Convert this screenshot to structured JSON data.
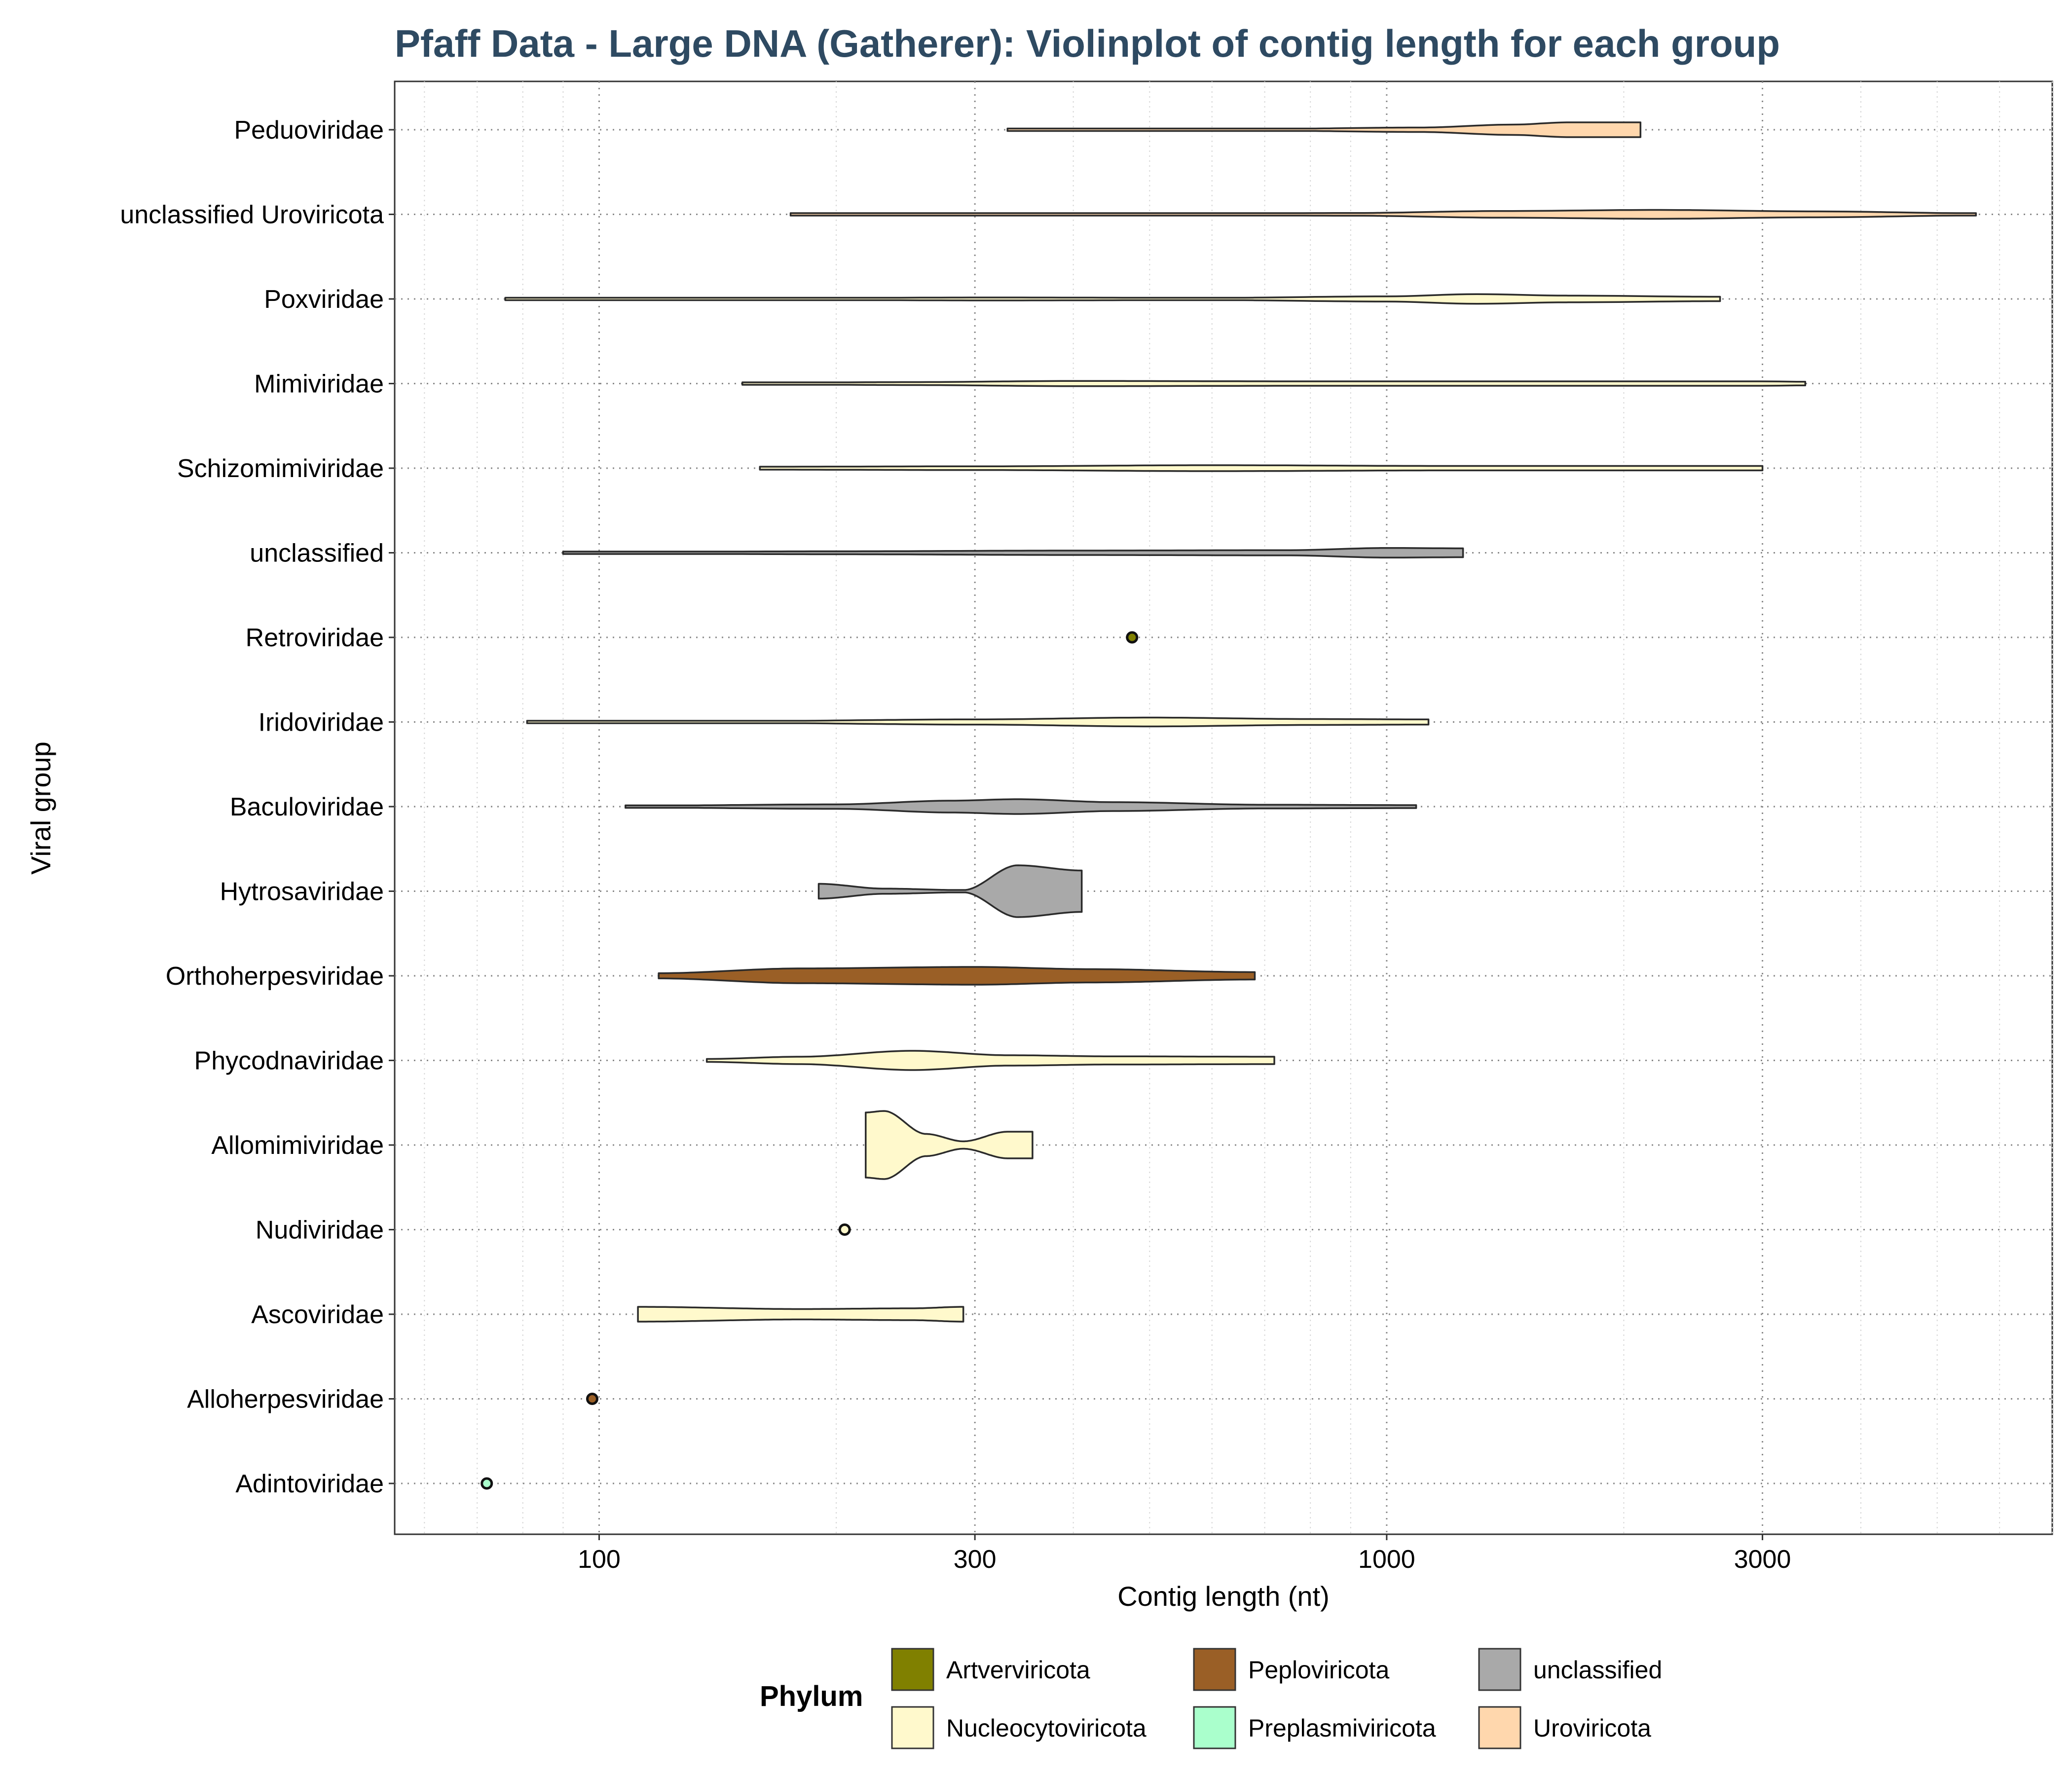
{
  "chart_data": {
    "type": "violin",
    "title": "Pfaff Data - Large DNA (Gatherer): Violinplot of contig length for each group",
    "xlabel": "Contig length (nt)",
    "ylabel": "Viral group",
    "x_scale": "log10",
    "xlim": [
      55,
      7000
    ],
    "x_ticks": [
      100,
      300,
      1000,
      3000
    ],
    "x_tick_labels": [
      "100",
      "300",
      "1000",
      "3000"
    ],
    "grid": true,
    "legend_title": "Phylum",
    "legend_position": "bottom",
    "legend": [
      {
        "label": "Artverviricota",
        "color": "#808000"
      },
      {
        "label": "Peploviricota",
        "color": "#9a5f26"
      },
      {
        "label": "unclassified",
        "color": "#a9a9a9"
      },
      {
        "label": "Nucleocytoviricota",
        "color": "#fff9cc"
      },
      {
        "label": "Preplasmiviricota",
        "color": "#aaffcc"
      },
      {
        "label": "Uroviricota",
        "color": "#ffd7ad"
      }
    ],
    "groups": [
      {
        "name": "Peduoviridae",
        "phylum": "Uroviricota",
        "min": 330,
        "max": 2100,
        "density": [
          [
            330,
            0.08
          ],
          [
            700,
            0.12
          ],
          [
            1100,
            0.3
          ],
          [
            1450,
            0.7
          ],
          [
            1700,
            1.0
          ],
          [
            2100,
            1.0
          ]
        ]
      },
      {
        "name": "unclassified Uroviricota",
        "phylum": "Uroviricota",
        "min": 175,
        "max": 5600,
        "density": [
          [
            175,
            0.15
          ],
          [
            500,
            0.08
          ],
          [
            900,
            0.18
          ],
          [
            1400,
            0.45
          ],
          [
            2200,
            0.6
          ],
          [
            3500,
            0.4
          ],
          [
            5600,
            0.15
          ]
        ]
      },
      {
        "name": "Poxviridae",
        "phylum": "Nucleocytoviricota",
        "min": 76,
        "max": 2650,
        "density": [
          [
            76,
            0.06
          ],
          [
            150,
            0.1
          ],
          [
            320,
            0.2
          ],
          [
            600,
            0.15
          ],
          [
            1000,
            0.35
          ],
          [
            1300,
            0.65
          ],
          [
            1700,
            0.45
          ],
          [
            2650,
            0.3
          ]
        ]
      },
      {
        "name": "Mimiviridae",
        "phylum": "Nucleocytoviricota",
        "min": 152,
        "max": 3400,
        "density": [
          [
            152,
            0.1
          ],
          [
            250,
            0.2
          ],
          [
            400,
            0.35
          ],
          [
            800,
            0.3
          ],
          [
            1500,
            0.3
          ],
          [
            3000,
            0.3
          ],
          [
            3400,
            0.25
          ]
        ]
      },
      {
        "name": "Schizomimiviridae",
        "phylum": "Nucleocytoviricota",
        "min": 160,
        "max": 3000,
        "density": [
          [
            160,
            0.2
          ],
          [
            300,
            0.25
          ],
          [
            600,
            0.4
          ],
          [
            1200,
            0.3
          ],
          [
            3000,
            0.3
          ]
        ]
      },
      {
        "name": "unclassified",
        "phylum": "unclassified",
        "min": 90,
        "max": 1250,
        "density": [
          [
            90,
            0.08
          ],
          [
            200,
            0.2
          ],
          [
            400,
            0.3
          ],
          [
            750,
            0.35
          ],
          [
            1000,
            0.65
          ],
          [
            1250,
            0.6
          ]
        ]
      },
      {
        "name": "Retroviridae",
        "phylum": "Artverviricota",
        "min": 475,
        "max": 475,
        "density": []
      },
      {
        "name": "Iridoviridae",
        "phylum": "Nucleocytoviricota",
        "min": 81,
        "max": 1130,
        "density": [
          [
            81,
            0.06
          ],
          [
            150,
            0.12
          ],
          [
            300,
            0.35
          ],
          [
            500,
            0.6
          ],
          [
            800,
            0.4
          ],
          [
            1130,
            0.35
          ]
        ]
      },
      {
        "name": "Baculoviridae",
        "phylum": "unclassified",
        "min": 108,
        "max": 1090,
        "density": [
          [
            108,
            0.12
          ],
          [
            200,
            0.3
          ],
          [
            280,
            0.8
          ],
          [
            340,
            1.0
          ],
          [
            450,
            0.6
          ],
          [
            700,
            0.25
          ],
          [
            1090,
            0.2
          ]
        ]
      },
      {
        "name": "Hytrosaviridae",
        "phylum": "unclassified",
        "min": 190,
        "max": 410,
        "density": [
          [
            190,
            1.0
          ],
          [
            230,
            0.35
          ],
          [
            290,
            0.15
          ],
          [
            340,
            3.5
          ],
          [
            410,
            2.8
          ]
        ]
      },
      {
        "name": "Orthoherpesviridae",
        "phylum": "Peploviricota",
        "min": 119,
        "max": 680,
        "density": [
          [
            119,
            0.35
          ],
          [
            180,
            1.0
          ],
          [
            300,
            1.2
          ],
          [
            420,
            0.9
          ],
          [
            680,
            0.5
          ]
        ]
      },
      {
        "name": "Phycodnaviridae",
        "phylum": "Nucleocytoviricota",
        "min": 137,
        "max": 720,
        "density": [
          [
            137,
            0.2
          ],
          [
            180,
            0.5
          ],
          [
            250,
            1.3
          ],
          [
            330,
            0.7
          ],
          [
            450,
            0.55
          ],
          [
            720,
            0.5
          ]
        ]
      },
      {
        "name": "Allomimiviridae",
        "phylum": "Nucleocytoviricota",
        "min": 218,
        "max": 355,
        "density": [
          [
            218,
            4.4
          ],
          [
            230,
            4.6
          ],
          [
            260,
            1.5
          ],
          [
            290,
            0.5
          ],
          [
            330,
            1.8
          ],
          [
            355,
            1.8
          ]
        ]
      },
      {
        "name": "Nudiviridae",
        "phylum": "Nucleocytoviricota",
        "min": 205,
        "max": 205,
        "density": []
      },
      {
        "name": "Ascoviridae",
        "phylum": "Nucleocytoviricota",
        "min": 112,
        "max": 290,
        "density": [
          [
            112,
            1.0
          ],
          [
            180,
            0.7
          ],
          [
            250,
            0.8
          ],
          [
            290,
            1.0
          ]
        ]
      },
      {
        "name": "Alloherpesviridae",
        "phylum": "Peploviricota",
        "min": 98,
        "max": 98,
        "density": []
      },
      {
        "name": "Adintoviridae",
        "phylum": "Preplasmiviricota",
        "min": 72,
        "max": 72,
        "density": []
      }
    ]
  }
}
